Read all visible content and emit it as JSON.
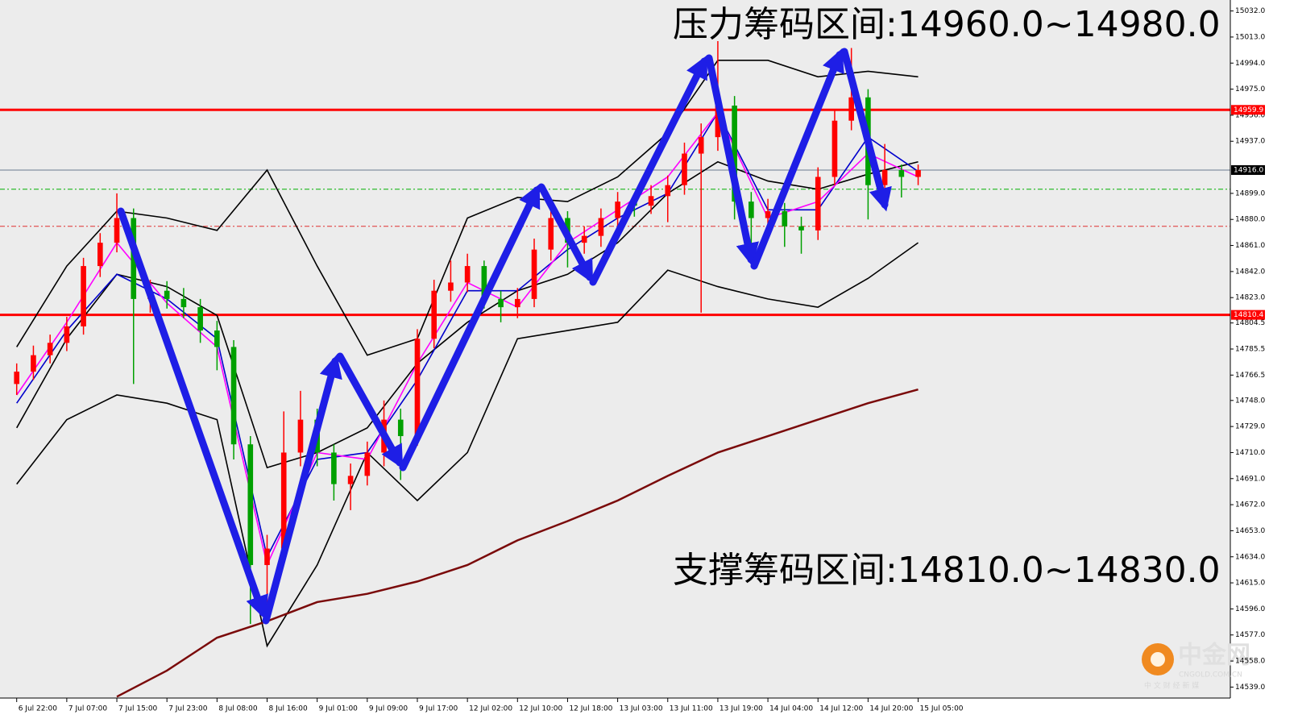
{
  "chart_data": {
    "type": "candlestick",
    "annotations": [
      "压力筹码区间:14960.0~14980.0",
      "支撑筹码区间:14810.0~14830.0"
    ],
    "logo": {
      "name": "中金网",
      "domain": "CNGOLD.COM.CN",
      "slogan": "中 文 财 经 新 媒"
    },
    "xlim": [
      -1,
      72.7
    ],
    "xticks": [
      {
        "value": 0,
        "label": "6 Jul 22:00"
      },
      {
        "value": 3,
        "label": "7 Jul 07:00"
      },
      {
        "value": 6,
        "label": "7 Jul 15:00"
      },
      {
        "value": 9,
        "label": "7 Jul 23:00"
      },
      {
        "value": 12,
        "label": "8 Jul 08:00"
      },
      {
        "value": 15,
        "label": "8 Jul 16:00"
      },
      {
        "value": 18,
        "label": "9 Jul 01:00"
      },
      {
        "value": 21,
        "label": "9 Jul 09:00"
      },
      {
        "value": 24,
        "label": "9 Jul 17:00"
      },
      {
        "value": 27,
        "label": "12 Jul 02:00"
      },
      {
        "value": 30,
        "label": "12 Jul 10:00"
      },
      {
        "value": 33,
        "label": "12 Jul 18:00"
      },
      {
        "value": 36,
        "label": "13 Jul 03:00"
      },
      {
        "value": 39,
        "label": "13 Jul 11:00"
      },
      {
        "value": 42,
        "label": "13 Jul 19:00"
      },
      {
        "value": 45,
        "label": "14 Jul 04:00"
      },
      {
        "value": 48,
        "label": "14 Jul 12:00"
      },
      {
        "value": 51,
        "label": "14 Jul 20:00"
      },
      {
        "value": 54,
        "label": "15 Jul 05:00"
      }
    ],
    "ylim": [
      14531,
      15040
    ],
    "yticks": [
      {
        "value": 15032,
        "label": "15032.0"
      },
      {
        "value": 15013,
        "label": "15013.0"
      },
      {
        "value": 14994,
        "label": "14994.0"
      },
      {
        "value": 14975,
        "label": "14975.0"
      },
      {
        "value": 14956,
        "label": "14956.0"
      },
      {
        "value": 14937,
        "label": "14937.0"
      },
      {
        "value": 14899,
        "label": "14899.0"
      },
      {
        "value": 14880,
        "label": "14880.0"
      },
      {
        "value": 14861,
        "label": "14861.0"
      },
      {
        "value": 14842,
        "label": "14842.0"
      },
      {
        "value": 14823,
        "label": "14823.0"
      },
      14804.5,
      14785.5,
      14766.5,
      {
        "value": 14748,
        "label": "14748.0"
      },
      {
        "value": 14729,
        "label": "14729.0"
      },
      {
        "value": 14710,
        "label": "14710.0"
      },
      {
        "value": 14691,
        "label": "14691.0"
      },
      {
        "value": 14672,
        "label": "14672.0"
      },
      {
        "value": 14653,
        "label": "14653.0"
      },
      {
        "value": 14634,
        "label": "14634.0"
      },
      {
        "value": 14615,
        "label": "14615.0"
      },
      {
        "value": 14596,
        "label": "14596.0"
      },
      {
        "value": 14577,
        "label": "14577.0"
      },
      {
        "value": 14558,
        "label": "14558.0"
      },
      {
        "value": 14539,
        "label": "14539.0"
      }
    ],
    "up_color": "#ff0000",
    "down_color": "#00a000",
    "open": [
      14760,
      14769,
      14781,
      14790,
      14802,
      14846,
      14863,
      14881,
      14822,
      14828,
      14822,
      14816,
      14799,
      14787,
      14716,
      14628,
      14640,
      14710,
      14734,
      14710,
      14687,
      14693,
      14710,
      14734,
      14722,
      14793,
      14828,
      14834,
      14846,
      14822,
      14816,
      14822,
      14858,
      14881,
      14863,
      14868,
      14881,
      14893,
      14890,
      14897,
      14905,
      14928,
      14940,
      14963,
      14893,
      14881,
      14886,
      14875,
      14872,
      14911,
      14952,
      14969,
      14905,
      14916,
      14911
    ],
    "high": [
      14775,
      14788,
      14796,
      14809,
      14852,
      14870,
      14899,
      14888,
      14836,
      14835,
      14830,
      14822,
      14806,
      14792,
      14722,
      14650,
      14740,
      14755,
      14742,
      14716,
      14702,
      14718,
      14748,
      14742,
      14800,
      14836,
      14850,
      14855,
      14850,
      14828,
      14830,
      14866,
      14888,
      14886,
      14875,
      14888,
      14900,
      14898,
      14905,
      14912,
      14936,
      14950,
      15010,
      14970,
      14900,
      14895,
      14892,
      14882,
      14918,
      14960,
      15005,
      14975,
      14935,
      14920,
      14920
    ],
    "low": [
      14752,
      14763,
      14775,
      14784,
      14796,
      14838,
      14856,
      14760,
      14812,
      14815,
      14808,
      14790,
      14770,
      14705,
      14585,
      14600,
      14632,
      14700,
      14700,
      14675,
      14668,
      14686,
      14700,
      14690,
      14715,
      14786,
      14820,
      14827,
      14815,
      14805,
      14808,
      14816,
      14850,
      14845,
      14855,
      14860,
      14872,
      14882,
      14884,
      14878,
      14898,
      14812,
      14930,
      14880,
      14862,
      14870,
      14860,
      14855,
      14865,
      14905,
      14945,
      14880,
      14898,
      14896,
      14905
    ],
    "close": [
      14769,
      14781,
      14790,
      14802,
      14846,
      14863,
      14881,
      14822,
      14828,
      14822,
      14816,
      14799,
      14787,
      14716,
      14628,
      14640,
      14710,
      14734,
      14710,
      14687,
      14693,
      14710,
      14734,
      14722,
      14793,
      14828,
      14834,
      14846,
      14822,
      14816,
      14822,
      14858,
      14881,
      14863,
      14868,
      14881,
      14893,
      14890,
      14897,
      14905,
      14928,
      14940,
      14963,
      14893,
      14881,
      14886,
      14875,
      14872,
      14911,
      14952,
      14969,
      14905,
      14916,
      14911,
      14916
    ],
    "lines": [
      {
        "color": "#000000",
        "x": [
          0,
          3,
          6,
          9,
          12,
          15,
          18,
          21,
          24,
          27,
          30,
          33,
          36,
          39,
          42,
          45,
          48,
          51,
          54
        ],
        "values": [
          14787,
          14846,
          14886,
          14881,
          14872,
          14916,
          14846,
          14781,
          14793,
          14881,
          14896,
          14893,
          14911,
          14943,
          14996,
          14996,
          14984,
          14988,
          14984
        ]
      },
      {
        "color": "#000000",
        "x": [
          0,
          3,
          6,
          9,
          12,
          15,
          18,
          21,
          24,
          27,
          30,
          33,
          36,
          39,
          42,
          45,
          48,
          51,
          54
        ],
        "values": [
          14728,
          14793,
          14840,
          14831,
          14810,
          14699,
          14710,
          14728,
          14775,
          14805,
          14828,
          14840,
          14863,
          14899,
          14922,
          14908,
          14902,
          14913,
          14922
        ]
      },
      {
        "color": "#000000",
        "x": [
          0,
          3,
          6,
          9,
          12,
          15,
          18,
          21,
          24,
          27,
          30,
          33,
          36,
          39,
          42,
          45,
          48,
          51,
          54
        ],
        "values": [
          14687,
          14734,
          14752,
          14746,
          14734,
          14569,
          14628,
          14710,
          14675,
          14710,
          14793,
          14799,
          14805,
          14843,
          14831,
          14822,
          14816,
          14837,
          14863
        ]
      },
      {
        "color": "#0000cc",
        "x": [
          0,
          3,
          6,
          9,
          12,
          15,
          18,
          21,
          24,
          27,
          30,
          33,
          36,
          39,
          42,
          45,
          48,
          51,
          54
        ],
        "values": [
          14746,
          14799,
          14840,
          14822,
          14793,
          14634,
          14705,
          14710,
          14763,
          14828,
          14828,
          14858,
          14881,
          14899,
          14958,
          14887,
          14887,
          14940,
          14915
        ]
      },
      {
        "color": "#ff00ff",
        "x": [
          0,
          3,
          6,
          9,
          12,
          15,
          18,
          21,
          24,
          27,
          30,
          33,
          36,
          39,
          42,
          45,
          48,
          51,
          54
        ],
        "values": [
          14752,
          14805,
          14863,
          14819,
          14787,
          14628,
          14710,
          14705,
          14775,
          14834,
          14816,
          14863,
          14887,
          14911,
          14958,
          14881,
          14893,
          14928,
          14911
        ]
      },
      {
        "color": "#7a0a0a",
        "x": [
          6,
          9,
          12,
          15,
          18,
          21,
          24,
          27,
          30,
          33,
          36,
          39,
          42,
          45,
          48,
          51,
          54
        ],
        "values": [
          14532,
          14551,
          14575,
          14587,
          14601,
          14607,
          14616,
          14628,
          14646,
          14660,
          14675,
          14693,
          14710,
          14722,
          14734,
          14746,
          14756
        ]
      }
    ],
    "levels": [
      {
        "value": 14959.9,
        "color": "#ff0000",
        "style": "solid"
      },
      {
        "value": 14916,
        "label": "14916.0",
        "color": "#6a7a90",
        "style": "thin"
      },
      {
        "value": 14810.4,
        "color": "#ff0000",
        "style": "solid"
      },
      {
        "value": 14902,
        "color": "#00b000",
        "style": "dashdot"
      },
      {
        "value": 14875,
        "color": "#e03030",
        "style": "dashdot"
      }
    ]
  }
}
